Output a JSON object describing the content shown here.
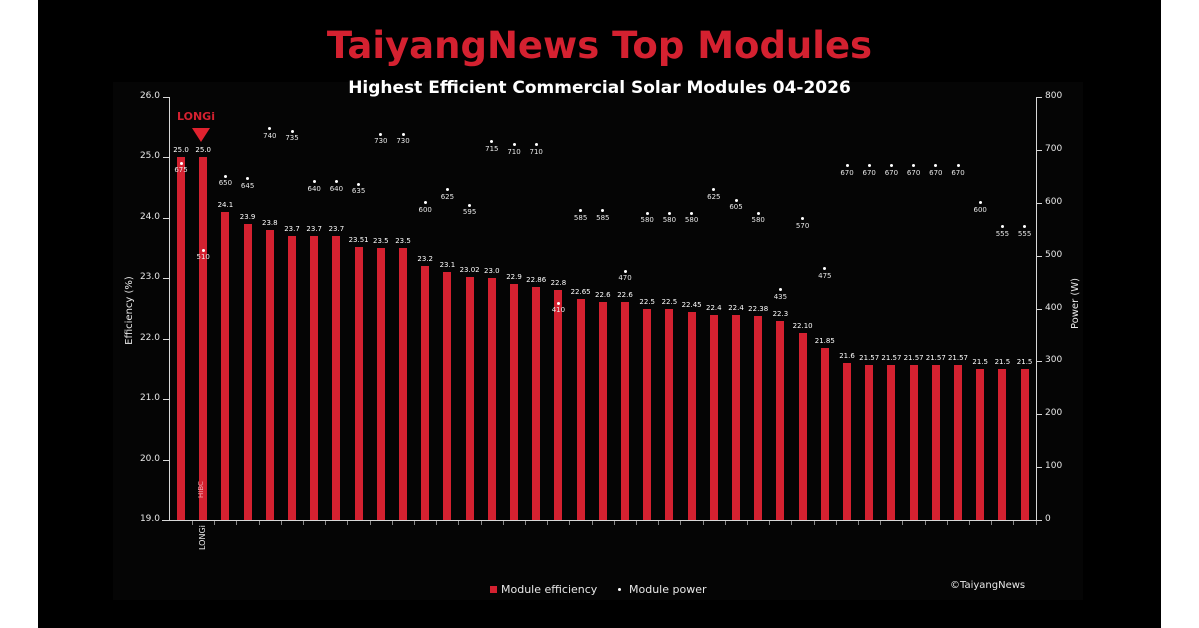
{
  "header": {
    "title": "TaiyangNews Top Modules",
    "subtitle": "Highest Efficient Commercial Solar Modules 04-2026"
  },
  "highlight": {
    "brand_logo": "LONGi",
    "bar_tag": "HIBC",
    "x_category": "LONGi"
  },
  "legend": {
    "efficiency": "Module efficiency",
    "power": "Module power"
  },
  "footer": {
    "copyright": "©TaiyangNews"
  },
  "colors": {
    "accent": "#d42130",
    "background": "#000000",
    "text": "#ffffff"
  },
  "chart_data": {
    "type": "bar",
    "title": "TaiyangNews Top Modules",
    "subtitle": "Highest Efficient Commercial Solar Modules 04-2026",
    "xlabel": "",
    "ylabel": "Efficiency (%)",
    "y2label": "Power (W)",
    "ylim": [
      19.0,
      26.0
    ],
    "y2lim": [
      0,
      800
    ],
    "yticks": [
      "19.0",
      "20.0",
      "21.0",
      "22.0",
      "23.0",
      "24.0",
      "25.0",
      "26.0"
    ],
    "y2ticks": [
      "0",
      "100",
      "200",
      "300",
      "400",
      "500",
      "600",
      "700",
      "800"
    ],
    "categories": [
      "LONGi",
      "",
      "",
      "",
      "",
      "",
      "",
      "",
      "",
      "",
      "",
      "",
      "",
      "",
      "",
      "",
      "",
      "",
      "",
      "",
      "",
      "",
      "",
      "",
      "",
      "",
      "",
      "",
      "",
      "",
      "",
      "",
      "",
      "",
      "",
      "",
      "",
      "",
      ""
    ],
    "category_note": "Only the second bar (LONGi, HIBC) is labeled; other manufacturer labels are blank",
    "legend_position": "bottom",
    "series": [
      {
        "name": "Module efficiency",
        "type": "bar",
        "axis": "left",
        "labels": [
          "25.0",
          "25.0",
          "24.1",
          "23.9",
          "23.8",
          "23.7",
          "23.7",
          "23.7",
          "23.51",
          "23.5",
          "23.5",
          "23.2",
          "23.1",
          "23.02",
          "23.0",
          "22.9",
          "22.86",
          "22.8",
          "22.65",
          "22.6",
          "22.6",
          "22.5",
          "22.5",
          "22.45",
          "22.4",
          "22.4",
          "22.38",
          "22.3",
          "22.10",
          "21.85",
          "21.6",
          "21.57",
          "21.57",
          "21.57",
          "21.57",
          "21.57",
          "21.5",
          "21.5",
          "21.5"
        ],
        "values": [
          25.0,
          25.0,
          24.1,
          23.9,
          23.8,
          23.7,
          23.7,
          23.7,
          23.51,
          23.5,
          23.5,
          23.2,
          23.1,
          23.02,
          23.0,
          22.9,
          22.86,
          22.8,
          22.65,
          22.6,
          22.6,
          22.5,
          22.5,
          22.45,
          22.4,
          22.4,
          22.38,
          22.3,
          22.1,
          21.85,
          21.6,
          21.57,
          21.57,
          21.57,
          21.57,
          21.57,
          21.5,
          21.5,
          21.5
        ]
      },
      {
        "name": "Module power",
        "type": "scatter",
        "axis": "right",
        "values": [
          675,
          510,
          650,
          645,
          740,
          735,
          640,
          640,
          635,
          730,
          730,
          600,
          625,
          595,
          715,
          710,
          710,
          410,
          585,
          585,
          470,
          580,
          580,
          580,
          625,
          605,
          580,
          435,
          570,
          475,
          670,
          670,
          670,
          670,
          670,
          670,
          600,
          555,
          555
        ]
      }
    ],
    "highlight_index": 1,
    "grid": false
  }
}
